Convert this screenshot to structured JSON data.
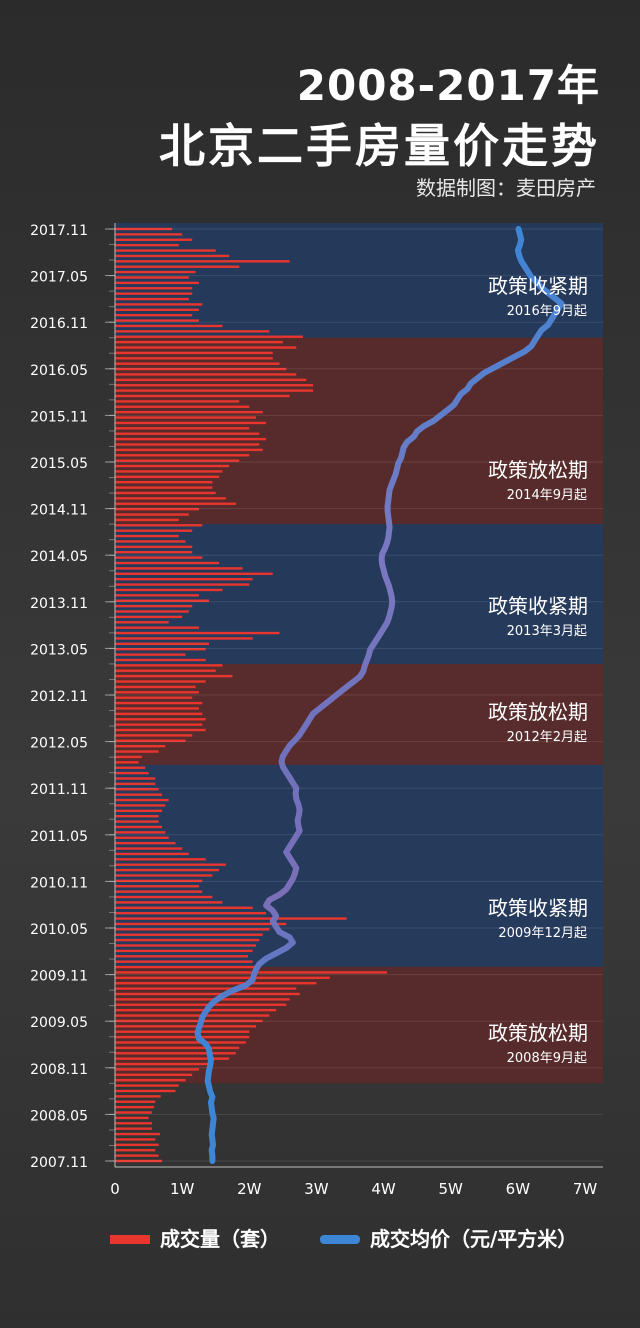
{
  "title_line1": "2008-2017年",
  "title_line2": "北京二手房量价走势",
  "credit": "数据制图：麦田房产",
  "legend": {
    "volume": "成交量（套）",
    "price": "成交均价（元/平方米）"
  },
  "colors": {
    "volume": "#e8352e",
    "price": "#3d86d6",
    "tight_band": "#253a5e",
    "loose_band": "#5a2b2b"
  },
  "chart_data": {
    "type": "bar",
    "orientation": "horizontal",
    "y_tick_labels": [
      "2017.11",
      "2017.05",
      "2016.11",
      "2016.05",
      "2015.11",
      "2015.05",
      "2014.11",
      "2014.05",
      "2013.11",
      "2013.05",
      "2012.11",
      "2012.05",
      "2011.11",
      "2011.05",
      "2010.11",
      "2010.05",
      "2009.11",
      "2009.05",
      "2008.11",
      "2008.05",
      "2007.11"
    ],
    "x_tick_labels": [
      "0",
      "1W",
      "2W",
      "3W",
      "4W",
      "5W",
      "6W",
      "7W"
    ],
    "x_range": [
      0,
      70000
    ],
    "time_range": [
      "2007.11",
      "2017.11"
    ],
    "periods": [
      {
        "label": "政策收紧期",
        "sub": "2016年9月起",
        "kind": "tight",
        "from": "2016.09",
        "to": "2017.11"
      },
      {
        "label": "政策放松期",
        "sub": "2014年9月起",
        "kind": "loose",
        "from": "2014.09",
        "to": "2016.09"
      },
      {
        "label": "政策收紧期",
        "sub": "2013年3月起",
        "kind": "tight",
        "from": "2013.03",
        "to": "2014.09"
      },
      {
        "label": "政策放松期",
        "sub": "2012年2月起",
        "kind": "loose",
        "from": "2012.02",
        "to": "2013.03"
      },
      {
        "label": "政策收紧期",
        "sub": "2009年12月起",
        "kind": "tight",
        "from": "2009.12",
        "to": "2012.02"
      },
      {
        "label": "政策放松期",
        "sub": "2008年9月起",
        "kind": "loose",
        "from": "2008.09",
        "to": "2009.12"
      }
    ],
    "series": [
      {
        "name": "成交量（套）",
        "values": [
          7000,
          6500,
          6000,
          6500,
          6000,
          6700,
          5500,
          5500,
          5000,
          5500,
          5800,
          6000,
          6800,
          9000,
          9500,
          10500,
          11500,
          12500,
          14500,
          17000,
          18000,
          18500,
          19500,
          20000,
          20000,
          21000,
          22000,
          23000,
          24000,
          25500,
          26000,
          27500,
          27000,
          30000,
          32000,
          40500,
          21500,
          20500,
          19800,
          20500,
          21000,
          21500,
          22000,
          23000,
          25500,
          34500,
          22500,
          20500,
          16000,
          14500,
          13000,
          12500,
          13000,
          14500,
          15500,
          16500,
          13500,
          11000,
          10000,
          9000,
          8000,
          7500,
          7000,
          6500,
          6500,
          7000,
          7500,
          8000,
          7000,
          6500,
          6000,
          6000,
          5000,
          4500,
          3500,
          4000,
          6500,
          7500,
          10500,
          11500,
          13500,
          13000,
          13500,
          13000,
          12500,
          13000,
          11500,
          12500,
          12000,
          13500,
          17500,
          15000,
          16000,
          13500,
          10500,
          13500,
          14000,
          20500,
          24500,
          12500,
          8000,
          10000,
          11000,
          11500,
          14000,
          12500,
          16000,
          20000,
          20500,
          23500,
          19000,
          15500,
          13000,
          11500,
          11500,
          10500,
          9500,
          11500,
          13000,
          9500,
          11000,
          12500,
          18000,
          16500,
          15000,
          14500,
          14500,
          15500,
          16000,
          17000,
          18500,
          20000,
          22000,
          21500,
          22500,
          21500,
          20000,
          22500,
          21000,
          22000,
          20000,
          18500,
          26000,
          29500,
          29500,
          28500,
          27000,
          25500,
          24500,
          23500,
          23500,
          27000,
          25000,
          28000,
          23000,
          16000,
          12500,
          11500,
          12500,
          13000,
          11000,
          11500,
          11500,
          12500,
          11000,
          12000,
          18500,
          26000,
          17000,
          15000,
          9500,
          11500,
          10000,
          8500
        ]
      },
      {
        "name": "成交均价（元/平方米）",
        "values": [
          14500,
          14500,
          14400,
          14600,
          14500,
          14400,
          14500,
          14600,
          14700,
          14500,
          14400,
          14300,
          14500,
          14200,
          14000,
          13800,
          13900,
          14000,
          14200,
          14300,
          14100,
          14000,
          13500,
          12500,
          12300,
          12500,
          12800,
          13000,
          13500,
          14000,
          14800,
          16000,
          17500,
          19500,
          20500,
          20700,
          21000,
          21500,
          22500,
          24000,
          25500,
          26500,
          26000,
          24500,
          24000,
          23500,
          24000,
          23500,
          22500,
          23000,
          24500,
          25500,
          26000,
          26500,
          26800,
          27000,
          26500,
          26000,
          25500,
          26000,
          26500,
          27000,
          27500,
          27300,
          27200,
          27400,
          27500,
          27300,
          27000,
          26900,
          27000,
          26500,
          26000,
          25500,
          25000,
          24800,
          25000,
          25500,
          26000,
          26800,
          27500,
          28000,
          28500,
          29000,
          29500,
          30500,
          31500,
          32500,
          33500,
          34500,
          35500,
          36500,
          37000,
          37200,
          37500,
          37800,
          38000,
          38500,
          39000,
          39500,
          40000,
          40500,
          40800,
          41000,
          41200,
          41300,
          41200,
          41000,
          40800,
          40500,
          40200,
          40000,
          39800,
          39700,
          39800,
          40200,
          40500,
          40700,
          40800,
          40900,
          40800,
          40700,
          40600,
          40600,
          40700,
          40800,
          40900,
          41200,
          41500,
          41800,
          42000,
          42200,
          42600,
          42800,
          43000,
          43500,
          44500,
          45000,
          46000,
          47500,
          48500,
          49500,
          50500,
          51000,
          51500,
          52500,
          53000,
          54000,
          55000,
          56500,
          58000,
          59500,
          61000,
          62000,
          62500,
          63000,
          63500,
          64500,
          65000,
          65500,
          66000,
          66500,
          65500,
          64500,
          63500,
          62800,
          62000,
          61500,
          61000,
          60500,
          60200,
          60000,
          60300,
          60500,
          60300,
          60100
        ]
      }
    ]
  }
}
